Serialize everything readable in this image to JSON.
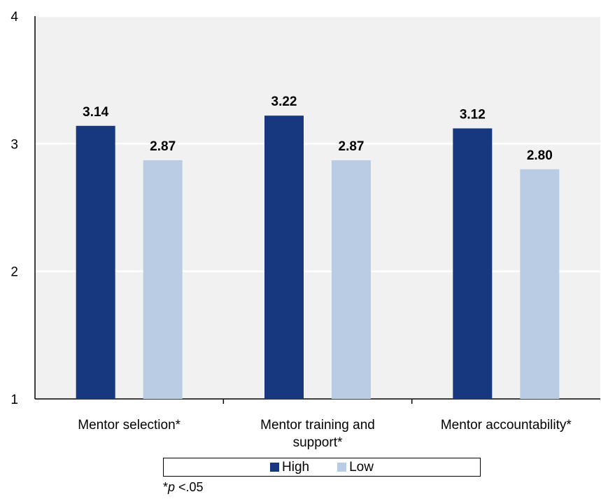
{
  "chart_data": {
    "type": "bar",
    "categories": [
      [
        "Mentor selection*"
      ],
      [
        "Mentor training and",
        "support*"
      ],
      [
        "Mentor accountability*"
      ]
    ],
    "series": [
      {
        "name": "High",
        "color": "#17387e",
        "values": [
          3.14,
          3.22,
          3.12
        ],
        "labels": [
          "3.14",
          "3.22",
          "3.12"
        ]
      },
      {
        "name": "Low",
        "color": "#b9cce4",
        "values": [
          2.87,
          2.87,
          2.8
        ],
        "labels": [
          "2.87",
          "2.87",
          "2.80"
        ]
      }
    ],
    "ylim": [
      1,
      4
    ],
    "yticks": [
      "1",
      "2",
      "3",
      "4"
    ],
    "grid": true,
    "plot_background": "#f1f1f1",
    "legend_position": "bottom",
    "footnote": {
      "star": "*",
      "p": "p",
      "rest": " <.05"
    }
  }
}
